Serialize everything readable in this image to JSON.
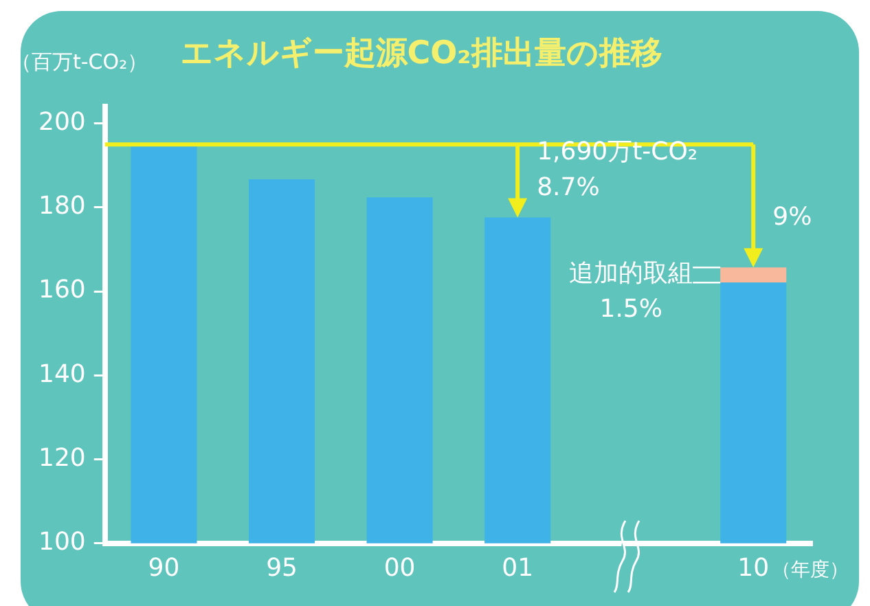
{
  "chart_data": {
    "type": "bar",
    "title": "エネルギー起源CO₂排出量の推移",
    "ylabel": "（百万t-CO₂）",
    "xlabel": "（年度）",
    "categories": [
      "90",
      "95",
      "00",
      "01",
      null,
      "10"
    ],
    "series": [
      {
        "color": "#3fb2e8",
        "values": [
          194.5,
          186.7,
          182.4,
          177.6,
          null,
          162.1
        ]
      },
      {
        "color": "#f7b89c",
        "values": [
          null,
          null,
          null,
          null,
          null,
          3.6
        ],
        "base": [
          null,
          null,
          null,
          null,
          null,
          162.1
        ]
      }
    ],
    "ylim": [
      100,
      204
    ],
    "yticks": [
      100,
      120,
      140,
      160,
      180,
      200
    ],
    "grid": false,
    "legend": false,
    "ref_lines": [
      {
        "axis": "y",
        "value": 195,
        "color": "#f2ee1e"
      }
    ],
    "annotations": [
      {
        "text": "1,690万t-CO₂\n8.7%",
        "x": "01",
        "y": 177.6
      },
      {
        "text": "9%",
        "x": "10",
        "y": 165.7
      },
      {
        "text": "追加的取組\n1.5%",
        "x": "10",
        "y": 165.7
      }
    ]
  }
}
